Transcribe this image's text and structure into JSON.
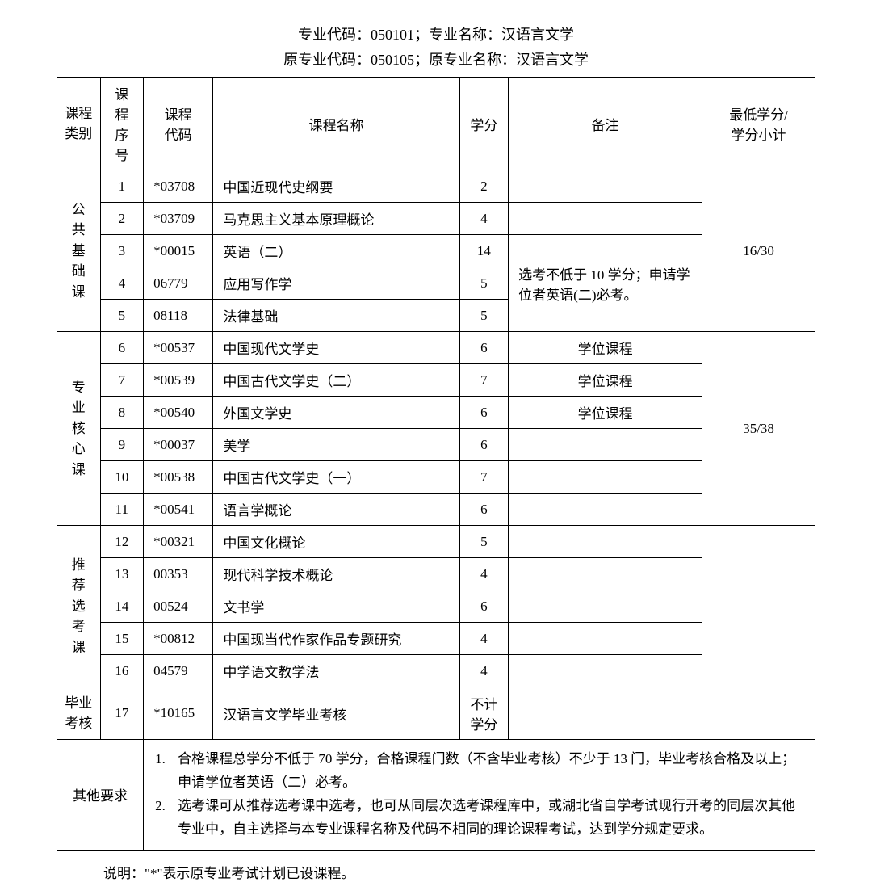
{
  "header": {
    "line1": "专业代码：050101；专业名称：汉语言文学",
    "line2": "原专业代码：050105；原专业名称：汉语言文学"
  },
  "columns": {
    "category": "课程类别",
    "seq": "课程序号",
    "code": "课程代码",
    "name": "课程名称",
    "credit": "学分",
    "remark": "备注",
    "min": "最低学分/学分小计"
  },
  "groups": [
    {
      "category_chars": [
        "公",
        "共",
        "基",
        "础",
        "课"
      ],
      "min_credit": "16/30",
      "rows": [
        {
          "seq": "1",
          "code": "*03708",
          "name": "中国近现代史纲要",
          "credit": "2",
          "remark": ""
        },
        {
          "seq": "2",
          "code": "*03709",
          "name": "马克思主义基本原理概论",
          "credit": "4",
          "remark": ""
        },
        {
          "seq": "3",
          "code": "*00015",
          "name": "英语（二）",
          "credit": "14",
          "remark_merged_start": true,
          "remark_merged_rows": 3,
          "remark": "选考不低于 10 学分；申请学位者英语(二)必考。"
        },
        {
          "seq": "4",
          "code": "06779",
          "name": "应用写作学",
          "credit": "5"
        },
        {
          "seq": "5",
          "code": "08118",
          "name": "法律基础",
          "credit": "5"
        }
      ]
    },
    {
      "category_chars": [
        "专",
        "业",
        "核",
        "心",
        "课"
      ],
      "min_credit": "35/38",
      "rows": [
        {
          "seq": "6",
          "code": "*00537",
          "name": "中国现代文学史",
          "credit": "6",
          "remark": "学位课程"
        },
        {
          "seq": "7",
          "code": "*00539",
          "name": "中国古代文学史（二）",
          "credit": "7",
          "remark": "学位课程"
        },
        {
          "seq": "8",
          "code": "*00540",
          "name": "外国文学史",
          "credit": "6",
          "remark": "学位课程"
        },
        {
          "seq": "9",
          "code": "*00037",
          "name": "美学",
          "credit": "6",
          "remark": ""
        },
        {
          "seq": "10",
          "code": "*00538",
          "name": "中国古代文学史（一）",
          "credit": "7",
          "remark": ""
        },
        {
          "seq": "11",
          "code": "*00541",
          "name": "语言学概论",
          "credit": "6",
          "remark": ""
        }
      ]
    },
    {
      "category_chars": [
        "推",
        "荐",
        "选",
        "考",
        "课"
      ],
      "min_credit": "",
      "rows": [
        {
          "seq": "12",
          "code": "*00321",
          "name": "中国文化概论",
          "credit": "5",
          "remark": ""
        },
        {
          "seq": "13",
          "code": "00353",
          "name": "现代科学技术概论",
          "credit": "4",
          "remark": ""
        },
        {
          "seq": "14",
          "code": "00524",
          "name": "文书学",
          "credit": "6",
          "remark": ""
        },
        {
          "seq": "15",
          "code": "*00812",
          "name": "中国现当代作家作品专题研究",
          "credit": "4",
          "remark": ""
        },
        {
          "seq": "16",
          "code": "04579",
          "name": "中学语文教学法",
          "credit": "4",
          "remark": ""
        }
      ]
    }
  ],
  "final_row": {
    "category_line1": "毕业",
    "category_line2": "考核",
    "seq": "17",
    "code": "*10165",
    "name": "汉语言文学毕业考核",
    "credit_line1": "不计",
    "credit_line2": "学分",
    "remark": "",
    "min": ""
  },
  "other_req_label": "其他要求",
  "other_req_items": [
    {
      "num": "1.",
      "text": "合格课程总学分不低于 70 学分，合格课程门数（不含毕业考核）不少于 13 门，毕业考核合格及以上；申请学位者英语（二）必考。"
    },
    {
      "num": "2.",
      "text": "选考课可从推荐选考课中选考，也可从同层次选考课程库中，或湖北省自学考试现行开考的同层次其他专业中，自主选择与本专业课程名称及代码不相同的理论课程考试，达到学分规定要求。"
    }
  ],
  "footer_note": "说明：\"*\"表示原专业考试计划已设课程。"
}
